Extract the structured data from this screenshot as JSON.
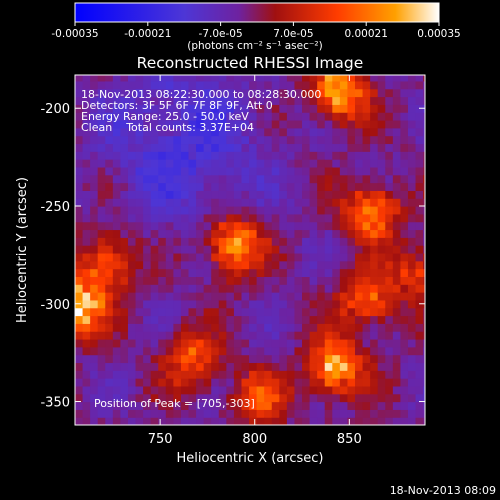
{
  "chart_data": {
    "type": "heatmap",
    "title": "Reconstructed RHESSI Image",
    "xlabel": "Heliocentric X (arcsec)",
    "ylabel": "Heliocentric Y (arcsec)",
    "xlim": [
      705,
      890
    ],
    "ylim": [
      -362,
      -183
    ],
    "x_ticks": [
      750,
      800,
      850
    ],
    "y_ticks": [
      -200,
      -250,
      -300,
      -350
    ],
    "colorbar": {
      "ticks": [
        "-0.00035",
        "-0.00021",
        "-7.0e-05",
        "7.0e-05",
        "0.00021",
        "0.00035"
      ],
      "range": [
        -0.00035,
        0.00035
      ],
      "units": "(photons cm⁻² s⁻¹ asec⁻²)"
    },
    "info_lines": [
      "18-Nov-2013 08:22:30.000 to 08:28:30.000",
      "Detectors: 3F 5F 6F 7F 8F 9F, Att 0",
      "Energy Range: 25.0 - 50.0 keV",
      "Clean    Total counts: 3.37E+04"
    ],
    "peak_label": "Position of Peak = [705,-303]",
    "peak_position": [
      705,
      -303
    ],
    "features": [
      {
        "name": "top-right source",
        "x": 843,
        "y": -193,
        "amplitude": 0.00033
      },
      {
        "name": "left edge peak",
        "x": 705,
        "y": -303,
        "amplitude": 0.00035
      },
      {
        "name": "left lower band",
        "x": 720,
        "y": -280,
        "amplitude": 0.00021
      },
      {
        "name": "central knot",
        "x": 787,
        "y": -272,
        "amplitude": 0.0003
      },
      {
        "name": "right upper cluster",
        "x": 860,
        "y": -255,
        "amplitude": 0.00025
      },
      {
        "name": "right middle cluster",
        "x": 858,
        "y": -300,
        "amplitude": 0.00023
      },
      {
        "name": "bottom right cluster",
        "x": 840,
        "y": -335,
        "amplitude": 0.0003
      },
      {
        "name": "bottom left arc",
        "x": 765,
        "y": -330,
        "amplitude": 0.0002
      },
      {
        "name": "bottom center ridge",
        "x": 800,
        "y": -350,
        "amplitude": 0.00018
      },
      {
        "name": "right edge",
        "x": 885,
        "y": -285,
        "amplitude": 0.00016
      }
    ],
    "negative_region": {
      "x": 760,
      "y": -220,
      "amplitude": -0.00012
    }
  },
  "timestamp": "18-Nov-2013 08:09",
  "colors": {
    "background": "#000000",
    "foreground": "#ffffff",
    "colormap": [
      "#0000ff",
      "#5a26c8",
      "#6e22a0",
      "#a01010",
      "#ff3c00",
      "#ffa000",
      "#ffffff"
    ]
  }
}
